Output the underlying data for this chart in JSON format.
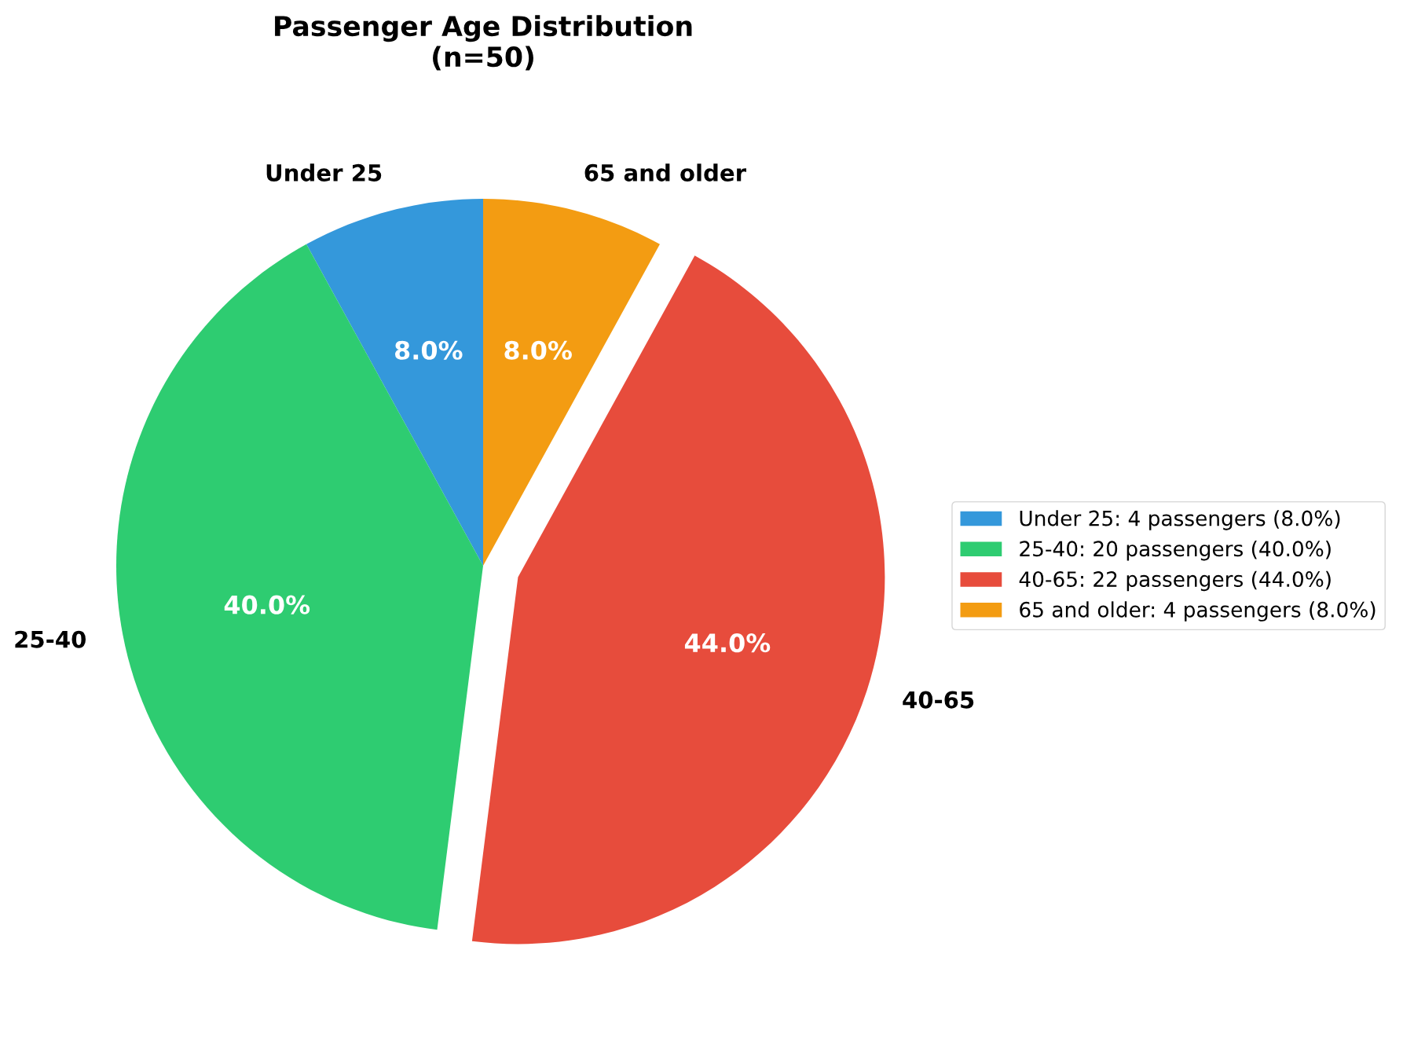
{
  "chart_data": {
    "type": "pie",
    "title": "Passenger Age Distribution\n(n=50)",
    "categories": [
      "Under 25",
      "25-40",
      "40-65",
      "65 and older"
    ],
    "values": [
      8.0,
      40.0,
      44.0,
      8.0
    ],
    "colors": [
      "#3498db",
      "#2ecc71",
      "#e74c3c",
      "#f39c12"
    ],
    "value_labels": [
      "8.0%",
      "40.0%",
      "44.0%",
      "8.0%"
    ],
    "annotations": [
      "Under 25: 4 passengers (8.0%)",
      "25-40: 20 passengers (40.0%)",
      "40-65: 22 passengers (44.0%)",
      "65 and older: 4 passengers (8.0%)"
    ]
  }
}
